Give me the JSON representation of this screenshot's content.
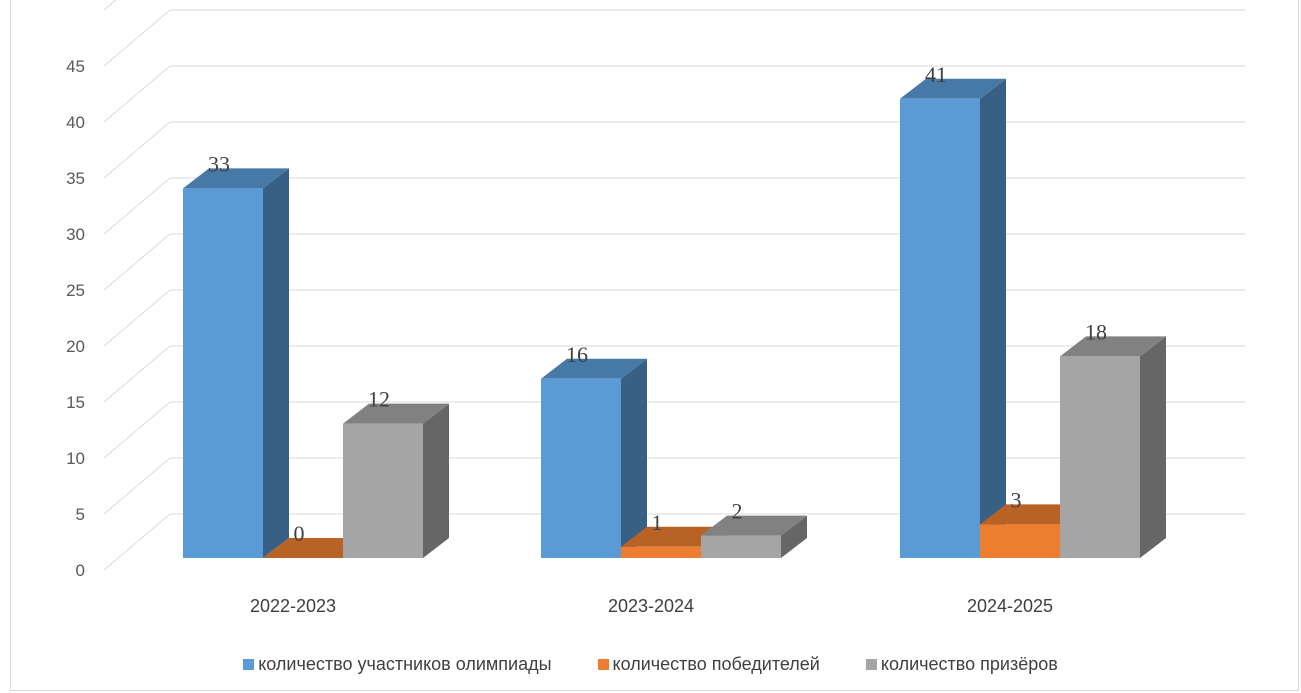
{
  "chart_data": {
    "type": "bar",
    "categories": [
      "2022-2023",
      "2023-2024",
      "2024-2025"
    ],
    "series": [
      {
        "name": "количество участников олимпиады",
        "values": [
          33,
          16,
          41
        ],
        "color": "#5b9bd5"
      },
      {
        "name": "количество победителей",
        "values": [
          0,
          1,
          3
        ],
        "color": "#ed7d31"
      },
      {
        "name": "количество призёров",
        "values": [
          12,
          2,
          18
        ],
        "color": "#a5a5a5"
      }
    ],
    "y_ticks": [
      "0",
      "5",
      "10",
      "15",
      "20",
      "25",
      "30",
      "35",
      "40",
      "45"
    ],
    "ylim": [
      0,
      45
    ],
    "grid": true,
    "legend_position": "bottom",
    "style": "3d-clustered-column"
  }
}
